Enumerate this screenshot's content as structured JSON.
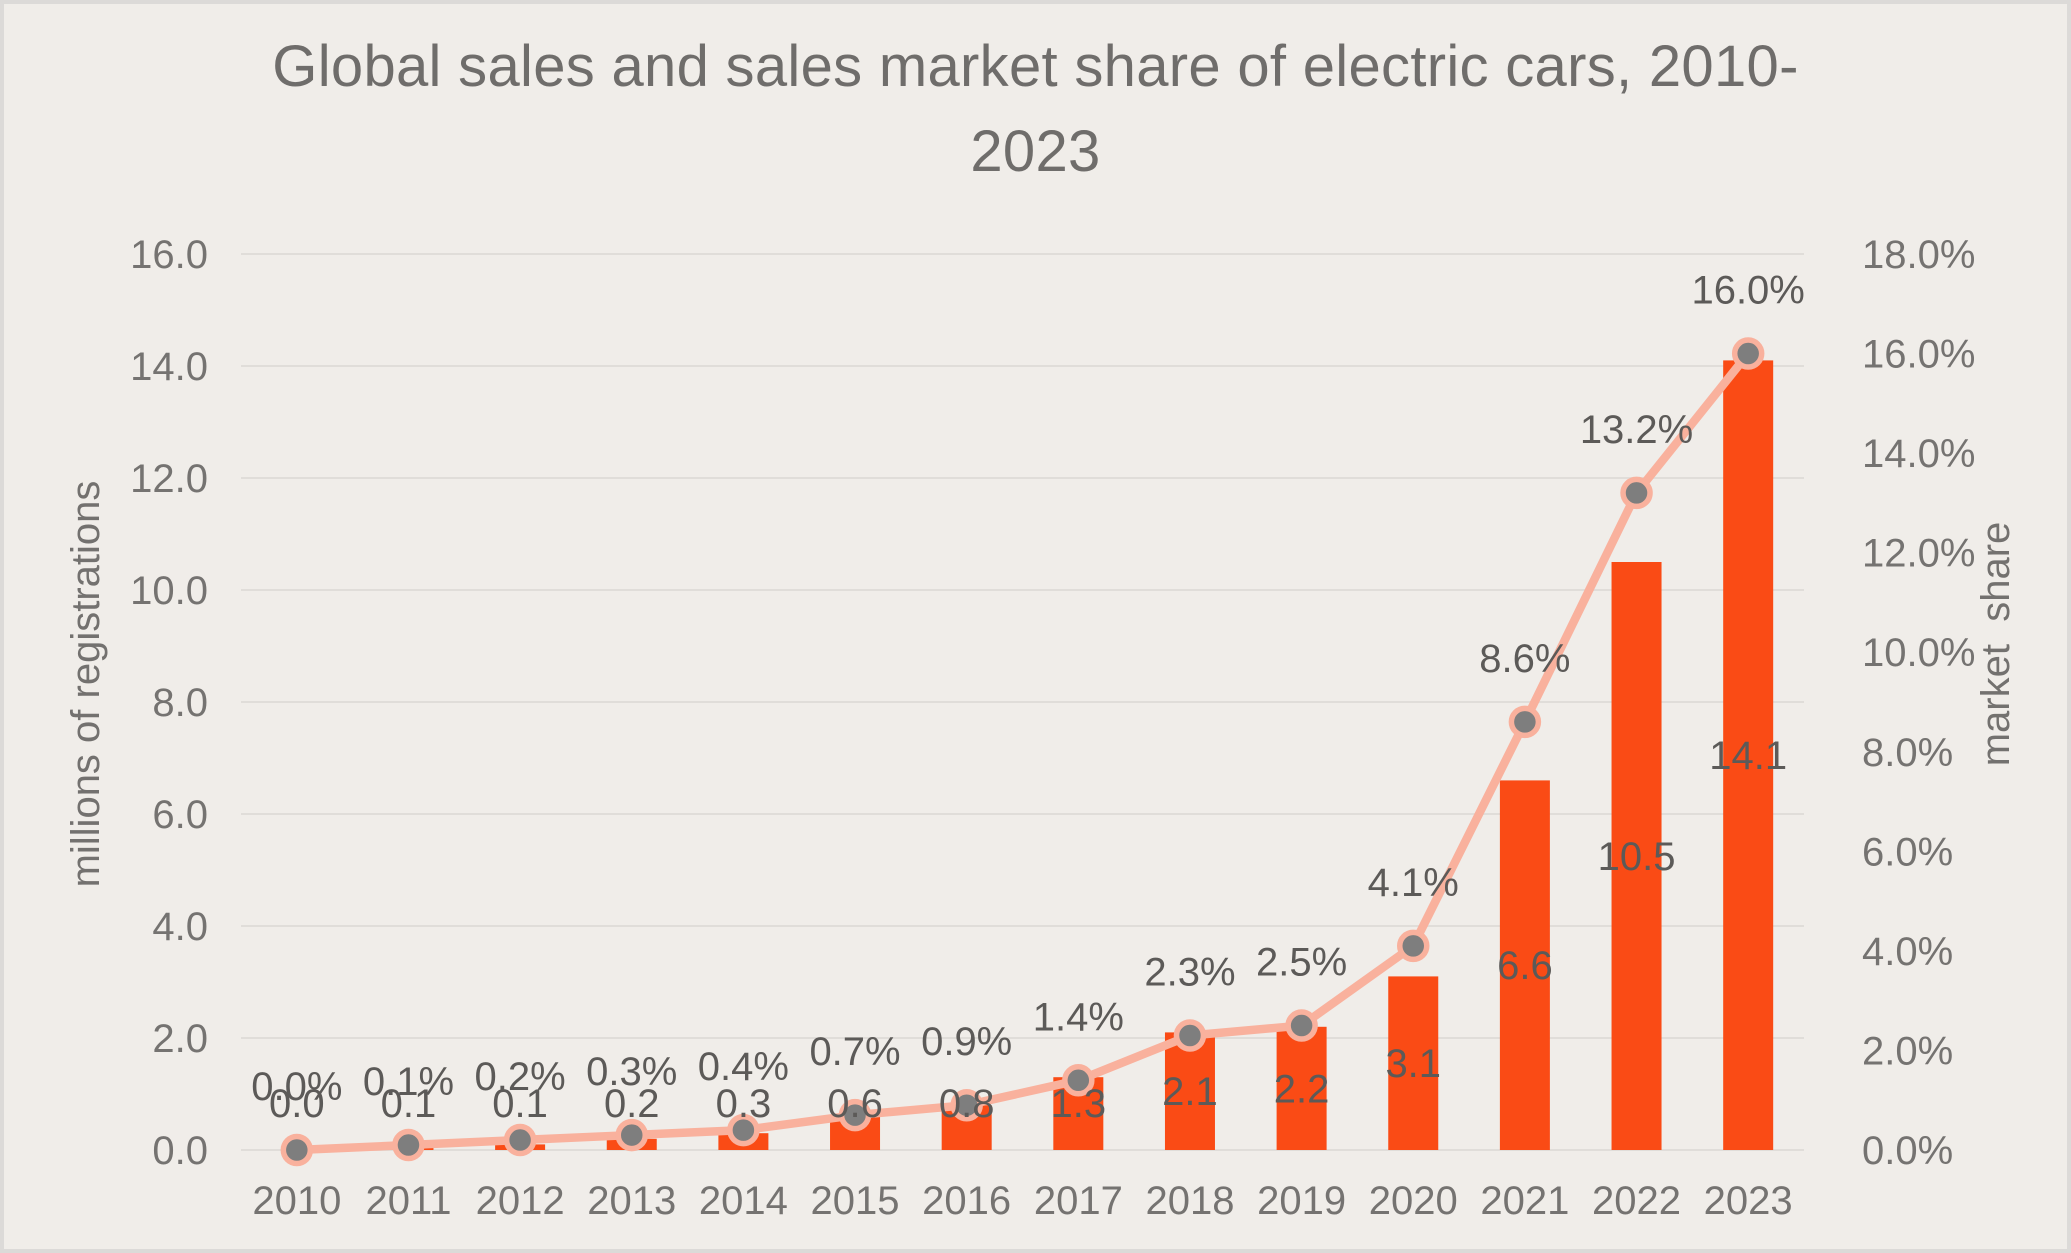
{
  "page": {
    "background": "#f0ede9",
    "border_color": "#dcdad8"
  },
  "title": {
    "full": "Global sales and sales market share of electric cars, 2010-2023",
    "line1": "Global sales and sales market share of electric cars, 2010-",
    "line2": "2023",
    "color": "#6f6d6b"
  },
  "chart_data": {
    "type": "bar",
    "subtype": "combo-bar-line-dual-axis",
    "title": "Global sales and sales market share of electric cars, 2010-2023",
    "categories": [
      "2010",
      "2011",
      "2012",
      "2013",
      "2014",
      "2015",
      "2016",
      "2017",
      "2018",
      "2019",
      "2020",
      "2021",
      "2022",
      "2023"
    ],
    "series": [
      {
        "name": "sales (millions of registrations)",
        "type": "bar",
        "axis": "left",
        "color": "#fa4b15",
        "values": [
          0.0,
          0.1,
          0.1,
          0.2,
          0.3,
          0.6,
          0.8,
          1.3,
          2.1,
          2.2,
          3.1,
          6.6,
          10.5,
          14.1
        ],
        "data_labels": [
          "0.0",
          "0.1",
          "0.1",
          "0.2",
          "0.3",
          "0.6",
          "0.8",
          "1.3",
          "2.1",
          "2.2",
          "3.1",
          "6.6",
          "10.5",
          "14.1"
        ]
      },
      {
        "name": "market share",
        "type": "line",
        "axis": "right",
        "line_color": "#f9b19d",
        "marker_color": "#7e7e7e",
        "values": [
          0.0,
          0.1,
          0.2,
          0.3,
          0.4,
          0.7,
          0.9,
          1.4,
          2.3,
          2.5,
          4.1,
          8.6,
          13.2,
          16.0
        ],
        "data_labels": [
          "0.0%",
          "0.1%",
          "0.2%",
          "0.3%",
          "0.4%",
          "0.7%",
          "0.9%",
          "1.4%",
          "2.3%",
          "2.5%",
          "4.1%",
          "8.6%",
          "13.2%",
          "16.0%"
        ]
      }
    ],
    "left_axis": {
      "title": "millions of registrations",
      "min": 0,
      "max": 16,
      "step": 2,
      "tick_labels": [
        "0.0",
        "2.0",
        "4.0",
        "6.0",
        "8.0",
        "10.0",
        "12.0",
        "14.0",
        "16.0"
      ]
    },
    "right_axis": {
      "title": "market  share",
      "min": 0,
      "max": 18,
      "step": 2,
      "tick_labels": [
        "0.0%",
        "2.0%",
        "4.0%",
        "6.0%",
        "8.0%",
        "10.0%",
        "12.0%",
        "14.0%",
        "16.0%",
        "18.0%"
      ]
    },
    "x_axis": {
      "tick_labels": [
        "2010",
        "2011",
        "2012",
        "2013",
        "2014",
        "2015",
        "2016",
        "2017",
        "2018",
        "2019",
        "2020",
        "2021",
        "2022",
        "2023"
      ]
    },
    "grid": true,
    "legend": "none",
    "colors": {
      "grid": "#e0ddd9",
      "tick_text": "#757371",
      "data_label_text": "#5c5a58"
    }
  }
}
